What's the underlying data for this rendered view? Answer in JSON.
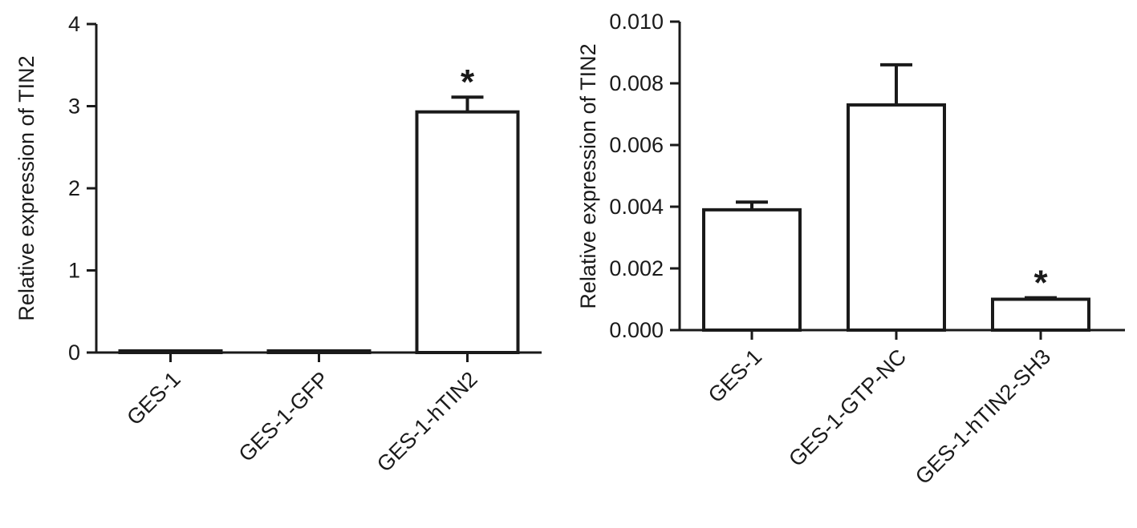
{
  "chart_data": [
    {
      "type": "bar",
      "title": "",
      "xlabel": "",
      "ylabel": "Relative expression of TIN2",
      "categories": [
        "GES-1",
        "GES-1-GFP",
        "GES-1-hTIN2"
      ],
      "values": [
        0.02,
        0.02,
        2.93
      ],
      "error_upper": [
        0,
        0,
        0.18
      ],
      "significance": [
        "",
        "",
        "*"
      ],
      "ylim": [
        0,
        4
      ],
      "yticks": [
        "0",
        "1",
        "2",
        "3",
        "4"
      ],
      "grid": false,
      "bar_fill": "#ffffff",
      "bar_stroke": "#1a1a1a"
    },
    {
      "type": "bar",
      "title": "",
      "xlabel": "",
      "ylabel": "Relative expression of TIN2",
      "categories": [
        "GES-1",
        "GES-1-GTP-NC",
        "GES-1-hTIN2-SH3"
      ],
      "values": [
        0.0039,
        0.0073,
        0.001
      ],
      "error_upper": [
        0.00025,
        0.0013,
        5e-05
      ],
      "significance": [
        "",
        "",
        "*"
      ],
      "ylim": [
        0,
        0.01
      ],
      "yticks": [
        "0.000",
        "0.002",
        "0.004",
        "0.006",
        "0.008",
        "0.010"
      ],
      "grid": false,
      "bar_fill": "#ffffff",
      "bar_stroke": "#1a1a1a"
    }
  ]
}
